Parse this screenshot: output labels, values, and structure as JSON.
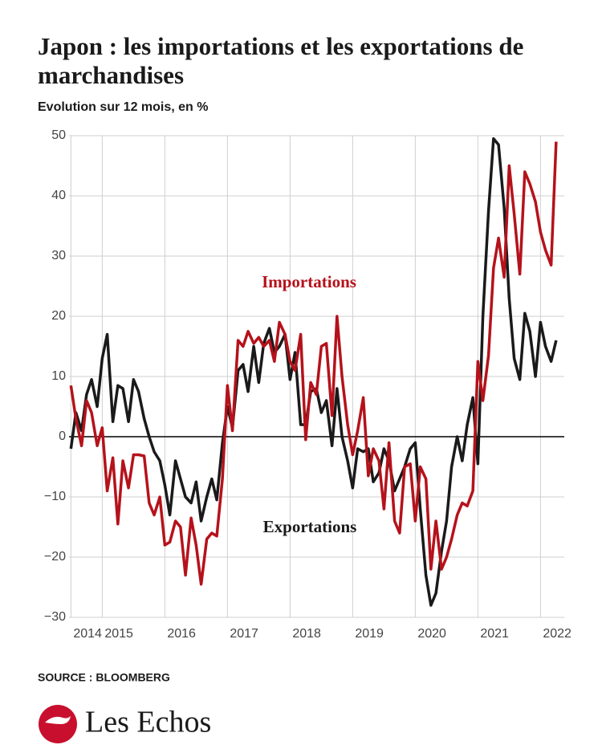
{
  "chart_data": {
    "type": "line",
    "title": "Japon : les importations et les exportations de marchandises",
    "subtitle": "Evolution sur 12 mois, en %",
    "source": "SOURCE : BLOOMBERG",
    "logo": "Les Echos",
    "annotations": [
      {
        "text": "Importations",
        "color": "#b5121b"
      },
      {
        "text": "Exportations",
        "color": "#1a1a1a"
      }
    ],
    "x": [
      2014.5,
      2014.58,
      2014.67,
      2014.75,
      2014.83,
      2014.92,
      2015,
      2015.08,
      2015.17,
      2015.25,
      2015.33,
      2015.42,
      2015.5,
      2015.58,
      2015.67,
      2015.75,
      2015.83,
      2015.92,
      2016,
      2016.08,
      2016.17,
      2016.25,
      2016.33,
      2016.42,
      2016.5,
      2016.58,
      2016.67,
      2016.75,
      2016.83,
      2016.92,
      2017,
      2017.08,
      2017.17,
      2017.25,
      2017.33,
      2017.42,
      2017.5,
      2017.58,
      2017.67,
      2017.75,
      2017.83,
      2017.92,
      2018,
      2018.08,
      2018.17,
      2018.25,
      2018.33,
      2018.42,
      2018.5,
      2018.58,
      2018.67,
      2018.75,
      2018.83,
      2018.92,
      2019,
      2019.08,
      2019.17,
      2019.25,
      2019.33,
      2019.42,
      2019.5,
      2019.58,
      2019.67,
      2019.75,
      2019.83,
      2019.92,
      2020,
      2020.08,
      2020.17,
      2020.25,
      2020.33,
      2020.42,
      2020.5,
      2020.58,
      2020.67,
      2020.75,
      2020.83,
      2020.92,
      2021,
      2021.08,
      2021.17,
      2021.25,
      2021.33,
      2021.42,
      2021.5,
      2021.58,
      2021.67,
      2021.75,
      2021.83,
      2021.92,
      2022,
      2022.08,
      2022.17,
      2022.25
    ],
    "series": [
      {
        "name": "Importations",
        "color": "#b5121b",
        "values": [
          8.5,
          3,
          -1.5,
          6,
          4,
          -1.5,
          1.5,
          -9,
          -3.5,
          -14.5,
          -4,
          -8.5,
          -3,
          -3,
          -3.2,
          -11,
          -13,
          -10,
          -18,
          -17.5,
          -14,
          -15,
          -23,
          -13.5,
          -18,
          -24.5,
          -17,
          -16,
          -16.5,
          -7,
          8.5,
          1,
          16,
          15,
          17.5,
          15.5,
          16.5,
          15,
          16,
          12.5,
          19,
          17,
          12.5,
          11,
          17,
          -0.5,
          9,
          7,
          15,
          15.5,
          3.5,
          20,
          10,
          2,
          -3,
          1,
          6.5,
          -6.5,
          -2,
          -4,
          -12,
          -1,
          -14,
          -16,
          -5,
          -4.5,
          -14,
          -5,
          -7,
          -22,
          -14,
          -22,
          -20,
          -17,
          -13,
          -11,
          -11.5,
          -9,
          12.5,
          6,
          13.5,
          28,
          33,
          26.5,
          45,
          37,
          27,
          44,
          42,
          39,
          34,
          31,
          28.5,
          49
        ]
      },
      {
        "name": "Exportations",
        "color": "#1a1a1a",
        "values": [
          -2,
          4,
          1,
          7,
          9.5,
          5,
          13,
          17,
          2.5,
          8.5,
          8,
          2.5,
          9.5,
          7.5,
          3,
          0,
          -2.5,
          -4,
          -8,
          -13,
          -4,
          -7,
          -10,
          -11,
          -7.5,
          -14,
          -10,
          -7,
          -10.5,
          -1,
          5,
          1.5,
          11,
          12,
          7.5,
          15,
          9,
          15.5,
          18,
          14,
          15,
          17,
          9.5,
          14,
          2,
          2,
          7.5,
          8,
          4,
          6,
          -1.5,
          8,
          0,
          -4,
          -8.5,
          -2,
          -2.5,
          -2,
          -7.5,
          -6,
          -2,
          -4,
          -9,
          -7,
          -5,
          -2,
          -1,
          -12,
          -23,
          -28,
          -26,
          -19,
          -14,
          -5,
          0,
          -4,
          2,
          6.5,
          -4.5,
          20,
          37.5,
          49.5,
          48.5,
          38,
          23,
          13,
          9.5,
          20.5,
          17.5,
          10,
          19,
          15,
          12.5,
          16
        ]
      }
    ],
    "xlim": [
      2014.47,
      2022.38
    ],
    "xticks": [
      {
        "value": 2014.5,
        "label": "2014"
      },
      2015,
      2016,
      2017,
      2018,
      2019,
      2020,
      2021,
      2022
    ],
    "ylim": [
      -30,
      50
    ],
    "yticks": [
      {
        "value": -30,
        "label": "−30"
      },
      {
        "value": -20,
        "label": "−20"
      },
      {
        "value": -10,
        "label": "−10"
      },
      0,
      10,
      20,
      30,
      40,
      50
    ],
    "grid": true
  }
}
